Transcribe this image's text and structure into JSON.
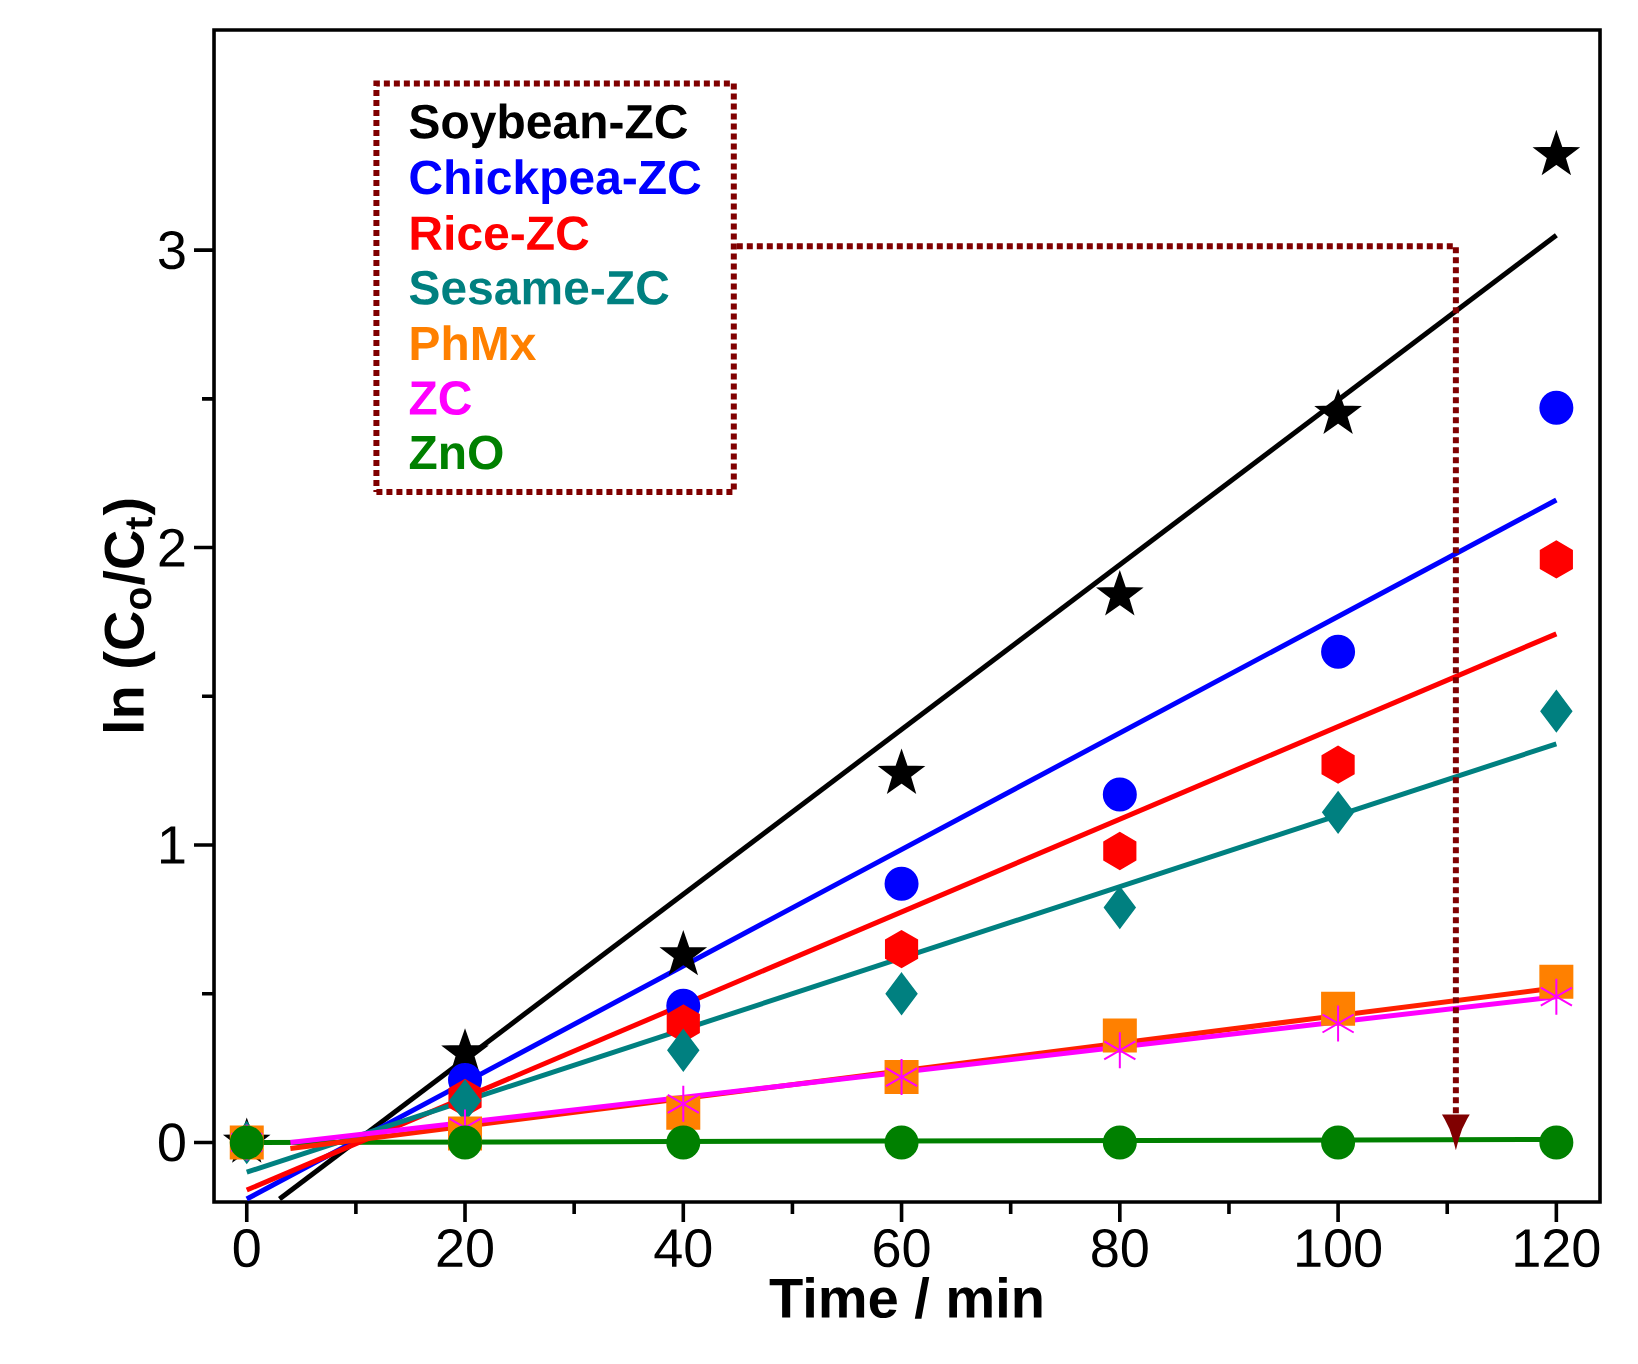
{
  "chart_data": {
    "type": "scatter",
    "xlabel": "Time / min",
    "ylabel": "ln (C$_{o}$/C$_{t}$)",
    "x": [
      0,
      20,
      40,
      60,
      80,
      100,
      120
    ],
    "xlim": [
      -3,
      124
    ],
    "ylim": [
      -0.2,
      3.74
    ],
    "xticks": [
      0,
      20,
      40,
      60,
      80,
      100,
      120
    ],
    "yticks": [
      0,
      1,
      2,
      3
    ],
    "legend": "top left",
    "series": [
      {
        "name": "Soybean-ZC",
        "color": "#000000",
        "marker": "star",
        "values": [
          0,
          0.3,
          0.63,
          1.24,
          1.84,
          2.45,
          3.32
        ]
      },
      {
        "name": "Chickpea-ZC",
        "color": "#0000ff",
        "marker": "circle",
        "values": [
          null,
          0.21,
          0.46,
          0.87,
          1.17,
          1.65,
          2.47
        ]
      },
      {
        "name": "Rice-ZC",
        "color": "#ff0000",
        "values": [
          null,
          0.15,
          0.4,
          0.65,
          0.98,
          1.27,
          1.96
        ]
      },
      {
        "name": "Sesame-ZC",
        "color": "#008080",
        "marker": "diamond",
        "values": [
          0,
          0.14,
          0.31,
          0.5,
          0.79,
          1.11,
          1.45
        ]
      },
      {
        "name": "PhMx",
        "color": "#ff8000",
        "marker": "square",
        "values": [
          0,
          0.03,
          0.1,
          0.22,
          0.36,
          0.45,
          0.54
        ]
      },
      {
        "name": "ZC",
        "color": "#ff00ff",
        "marker": "cross",
        "values": [
          0,
          0.05,
          0.13,
          0.22,
          0.31,
          0.4,
          0.49
        ]
      },
      {
        "name": "ZnO",
        "color": "#008000",
        "marker": "circle",
        "values": [
          0,
          0,
          0,
          0,
          0,
          0,
          0
        ]
      },
      {
        "type": "line",
        "color": "#008000",
        "x": [
          0,
          120
        ],
        "values": [
          0,
          0.01
        ]
      },
      {
        "type": "line",
        "color": "#000000",
        "x": [
          3,
          120
        ],
        "values": [
          -0.19,
          3.05
        ]
      },
      {
        "type": "line",
        "color": "#0000ff",
        "x": [
          0,
          120
        ],
        "values": [
          -0.19,
          2.16
        ]
      },
      {
        "type": "line",
        "color": "#ff0000",
        "x": [
          0,
          120
        ],
        "values": [
          -0.16,
          1.71
        ]
      },
      {
        "type": "line",
        "color": "#008080",
        "x": [
          0,
          120
        ],
        "values": [
          -0.1,
          1.34
        ]
      },
      {
        "type": "line",
        "color": "#ff2000",
        "x": [
          4,
          120
        ],
        "values": [
          -0.02,
          0.52
        ]
      },
      {
        "type": "line",
        "color": "#ff00ff",
        "x": [
          4,
          120
        ],
        "values": [
          0,
          0.49
        ]
      }
    ]
  }
}
